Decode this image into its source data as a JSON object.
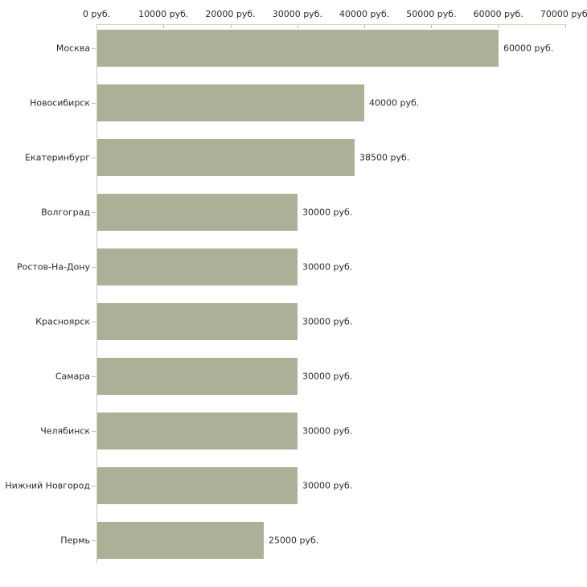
{
  "chart_data": {
    "type": "bar",
    "orientation": "horizontal",
    "title": "",
    "xlabel": "",
    "ylabel": "",
    "categories": [
      "Москва",
      "Новосибирск",
      "Екатеринбург",
      "Волгоград",
      "Ростов-На-Дону",
      "Красноярск",
      "Самара",
      "Челябинск",
      "Нижний Новгород",
      "Пермь"
    ],
    "values": [
      60000,
      40000,
      38500,
      30000,
      30000,
      30000,
      30000,
      30000,
      30000,
      25000
    ],
    "value_labels": [
      "60000 руб.",
      "40000 руб.",
      "38500 руб.",
      "30000 руб.",
      "30000 руб.",
      "30000 руб.",
      "30000 руб.",
      "30000 руб.",
      "30000 руб.",
      "25000 руб."
    ],
    "x_ticks": [
      0,
      10000,
      20000,
      30000,
      40000,
      50000,
      60000,
      70000
    ],
    "x_tick_labels": [
      "0 руб.",
      "10000 руб.",
      "20000 руб.",
      "30000 руб.",
      "40000 руб.",
      "50000 руб.",
      "60000 руб.",
      "70000 руб."
    ],
    "xlim": [
      0,
      70000
    ],
    "unit_suffix": "руб.",
    "grid": false,
    "legend": false,
    "colors": {
      "bar": "#abb196",
      "x_axis_line": "#d9d6bd",
      "x_tick": "#c2bd98",
      "y_axis_line": "#c8c8c8",
      "cat_tick": "#c2bd98",
      "text": "#2a2a2a",
      "background": "#ffffff"
    }
  }
}
